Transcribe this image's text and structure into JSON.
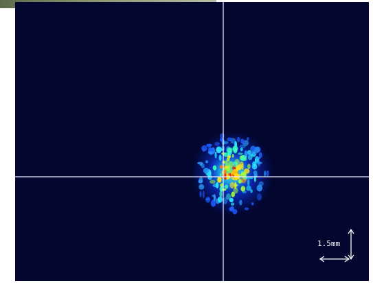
{
  "scale_label": "1.5mm"
}
